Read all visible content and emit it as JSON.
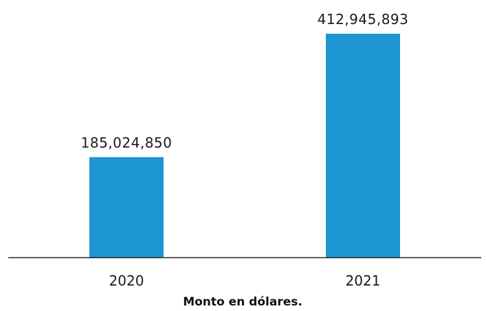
{
  "chart_data": {
    "type": "bar",
    "categories": [
      "2020",
      "2021"
    ],
    "values": [
      185024850,
      412945893
    ],
    "value_labels": [
      "185,024,850",
      "412,945,893"
    ],
    "title": "",
    "xlabel": "Monto en dólares.",
    "ylabel": "",
    "ylim": [
      0,
      412945893
    ],
    "grid": false,
    "legend": "none",
    "bar_color": "#1e96d4",
    "axis_color": "#222222"
  }
}
